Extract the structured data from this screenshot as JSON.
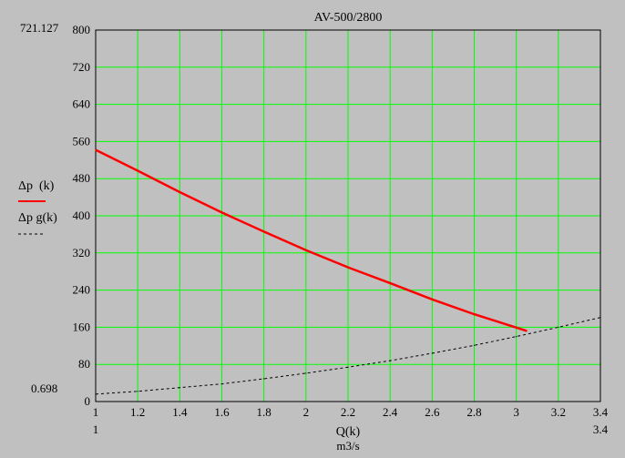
{
  "chart_data": {
    "type": "line",
    "title": "AV-500/2800",
    "xlabel": "Q(k)",
    "xunit": "m3/s",
    "x_range_left_label": "1",
    "x_range_right_label": "3.4",
    "y_range_top_label": "721.127",
    "y_range_bottom_label": "0.698",
    "xlim": [
      1,
      3.4
    ],
    "ylim": [
      0,
      800
    ],
    "x_ticks": [
      1,
      1.2,
      1.4,
      1.6,
      1.8,
      2,
      2.2,
      2.4,
      2.6,
      2.8,
      3,
      3.2,
      3.4
    ],
    "x_tick_labels": [
      "1",
      "1.2",
      "1.4",
      "1.6",
      "1.8",
      "2",
      "2.2",
      "2.4",
      "2.6",
      "2.8",
      "3",
      "3.2",
      "3.4"
    ],
    "y_ticks": [
      0,
      80,
      160,
      240,
      320,
      400,
      480,
      560,
      640,
      720,
      800
    ],
    "y_tick_labels": [
      "0",
      "80",
      "160",
      "240",
      "320",
      "400",
      "480",
      "560",
      "640",
      "720",
      "800"
    ],
    "grid": true,
    "legend_position": "left",
    "series": [
      {
        "name": "Δp  (k)",
        "color": "#ff0000",
        "style": "solid",
        "x": [
          1.0,
          1.2,
          1.4,
          1.6,
          1.8,
          2.0,
          2.2,
          2.4,
          2.6,
          2.8,
          3.05
        ],
        "y": [
          542,
          497,
          451,
          407,
          366,
          326,
          289,
          255,
          220,
          188,
          152
        ]
      },
      {
        "name": "Δp g(k)",
        "color": "#000000",
        "style": "dashed",
        "x": [
          1.0,
          1.2,
          1.4,
          1.6,
          1.8,
          2.0,
          2.2,
          2.4,
          2.6,
          2.8,
          3.0,
          3.2,
          3.4
        ],
        "y": [
          16,
          22,
          30,
          38,
          49,
          61,
          74,
          88,
          104,
          121,
          140,
          160,
          181
        ]
      }
    ]
  },
  "colors": {
    "background": "#c0c0c0",
    "plot_background": "#c0c0c0",
    "grid": "#00ff00",
    "axes": "#000000"
  }
}
